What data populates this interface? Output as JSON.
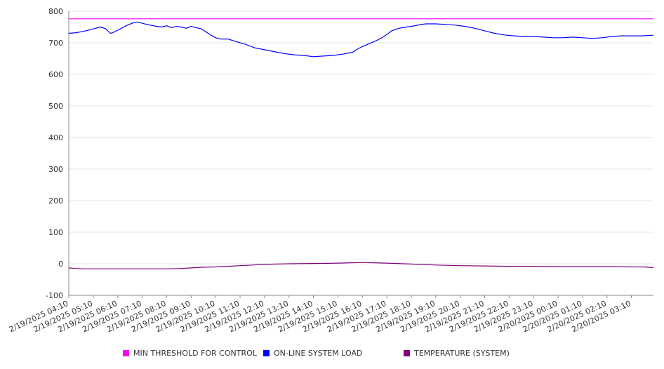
{
  "colors": {
    "threshold": "#ff00ff",
    "load": "#0000ff",
    "temperature": "#800080",
    "grid": "#e6e6e6",
    "axis": "#888888"
  },
  "legend": [
    {
      "label": "MIN THRESHOLD FOR CONTROL",
      "color": "#ff00ff"
    },
    {
      "label": "ON-LINE SYSTEM LOAD",
      "color": "#0000ff"
    },
    {
      "label": "TEMPERATURE (SYSTEM)",
      "color": "#800080"
    }
  ],
  "chart_data": {
    "type": "line",
    "ylim": [
      -100,
      800
    ],
    "yticks": [
      -100,
      0,
      100,
      200,
      300,
      400,
      500,
      600,
      700,
      800
    ],
    "grid": "horizontal",
    "legend_position": "bottom",
    "categories": [
      "2/19/2025 04:10",
      "2/19/2025 05:10",
      "2/19/2025 06:10",
      "2/19/2025 07:10",
      "2/19/2025 08:10",
      "2/19/2025 09:10",
      "2/19/2025 10:10",
      "2/19/2025 11:10",
      "2/19/2025 12:10",
      "2/19/2025 13:10",
      "2/19/2025 14:10",
      "2/19/2025 15:10",
      "2/19/2025 16:10",
      "2/19/2025 17:10",
      "2/19/2025 18:10",
      "2/19/2025 19:10",
      "2/19/2025 20:10",
      "2/19/2025 21:10",
      "2/19/2025 22:10",
      "2/19/2025 23:10",
      "2/20/2025 00:10",
      "2/20/2025 01:10",
      "2/20/2025 02:10",
      "2/20/2025 03:10"
    ],
    "x_end": 23.9,
    "series": [
      {
        "name": "MIN THRESHOLD FOR CONTROL",
        "color": "#ff00ff",
        "x": [
          0,
          23.9
        ],
        "values": [
          776,
          776
        ]
      },
      {
        "name": "ON-LINE SYSTEM LOAD",
        "color": "#0000ff",
        "x": [
          0,
          0.3,
          0.5,
          0.7,
          0.9,
          1.1,
          1.3,
          1.5,
          1.7,
          1.8,
          2.0,
          2.2,
          2.4,
          2.6,
          2.8,
          3.0,
          3.2,
          3.4,
          3.6,
          3.8,
          4.0,
          4.2,
          4.4,
          4.6,
          4.8,
          5.0,
          5.2,
          5.4,
          5.6,
          5.8,
          6.0,
          6.2,
          6.5,
          6.8,
          7.0,
          7.2,
          7.4,
          7.6,
          8.0,
          8.4,
          8.8,
          9.2,
          9.6,
          10.0,
          10.4,
          10.8,
          11.2,
          11.6,
          11.8,
          12.0,
          12.3,
          12.6,
          12.8,
          13.0,
          13.2,
          13.5,
          13.8,
          14.0,
          14.2,
          14.4,
          14.6,
          15.0,
          15.4,
          15.8,
          16.2,
          16.6,
          17.0,
          17.4,
          17.8,
          18.2,
          18.6,
          19.0,
          19.4,
          19.8,
          20.2,
          20.6,
          21.0,
          21.4,
          21.8,
          22.2,
          22.6,
          23.0,
          23.4,
          23.9
        ],
        "values": [
          730,
          732,
          735,
          738,
          742,
          746,
          750,
          745,
          730,
          732,
          740,
          748,
          756,
          762,
          766,
          762,
          758,
          755,
          752,
          750,
          754,
          748,
          752,
          750,
          746,
          752,
          748,
          745,
          735,
          725,
          716,
          712,
          712,
          705,
          700,
          696,
          690,
          684,
          678,
          672,
          666,
          662,
          660,
          656,
          658,
          660,
          664,
          670,
          680,
          688,
          698,
          708,
          716,
          726,
          738,
          746,
          750,
          752,
          755,
          758,
          760,
          760,
          758,
          756,
          752,
          746,
          738,
          730,
          725,
          722,
          720,
          720,
          718,
          716,
          716,
          718,
          716,
          714,
          716,
          720,
          722,
          722,
          722,
          724
        ]
      },
      {
        "name": "TEMPERATURE (SYSTEM)",
        "color": "#800080",
        "x": [
          0,
          0.3,
          0.6,
          1,
          2,
          3,
          4,
          4.5,
          5,
          5.5,
          6,
          6.5,
          7,
          7.5,
          8,
          8.5,
          9,
          10,
          11,
          11.5,
          12,
          12.5,
          13,
          14,
          15,
          16,
          17,
          18,
          19,
          20,
          21,
          22,
          23,
          23.5,
          23.9
        ],
        "values": [
          -13,
          -15,
          -16,
          -16,
          -16,
          -16,
          -16,
          -15,
          -13,
          -11,
          -10,
          -8,
          -6,
          -4,
          -2,
          -1,
          0,
          1,
          2,
          3,
          4,
          3,
          2,
          -1,
          -4,
          -6,
          -7,
          -8,
          -8,
          -9,
          -9,
          -9,
          -10,
          -10,
          -12
        ]
      }
    ]
  }
}
